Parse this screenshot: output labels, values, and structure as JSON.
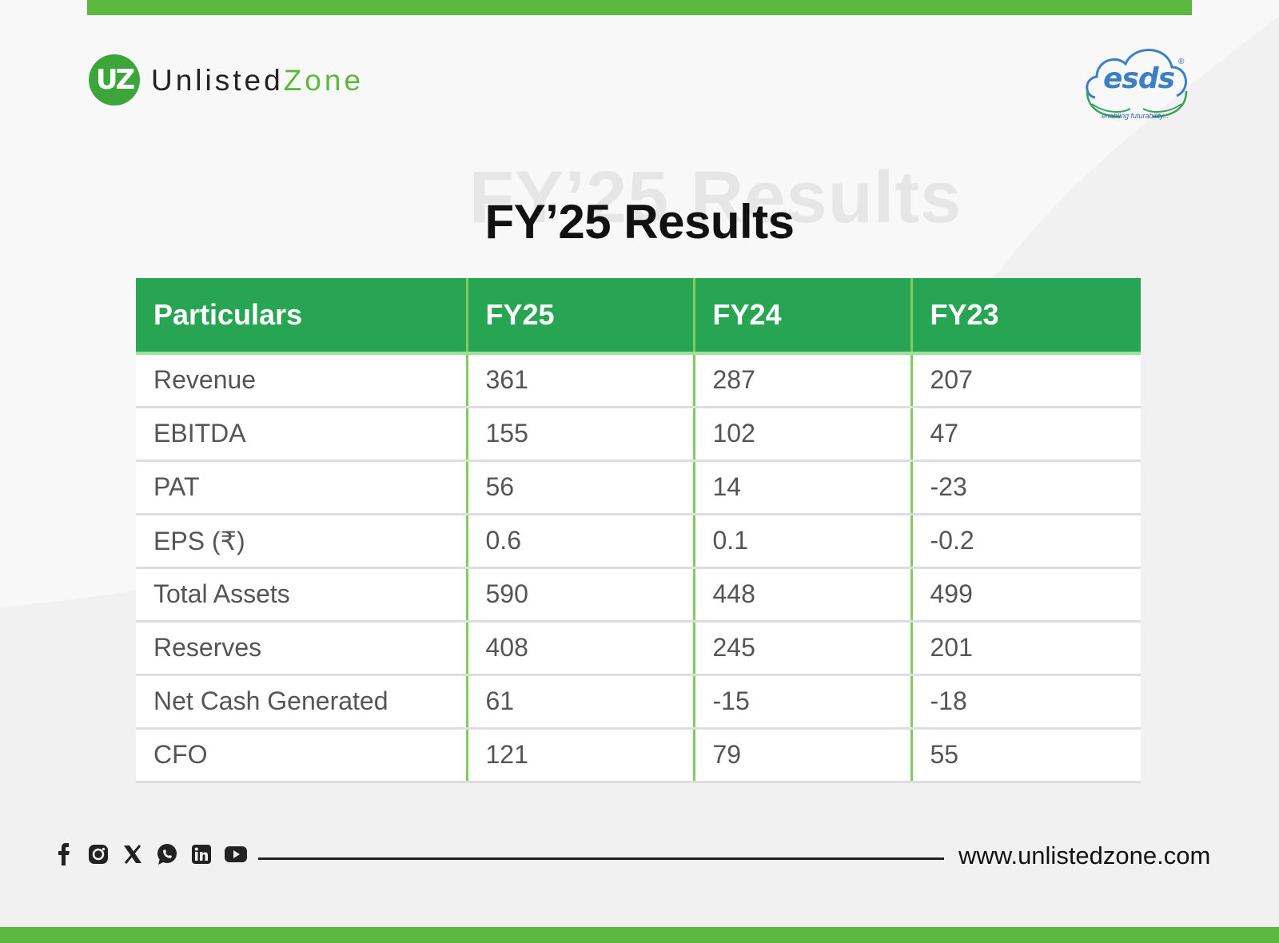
{
  "header": {
    "brand_primary": "Unlisted",
    "brand_secondary": "Zone",
    "brand_badge": "UZ",
    "partner_name": "esds",
    "partner_tagline": "enabling futurability...",
    "partner_reg_mark": "®"
  },
  "title": {
    "ghost": "FY’25 Results",
    "main": "FY’25 Results"
  },
  "table": {
    "headers": [
      "Particulars",
      "FY25",
      "FY24",
      "FY23"
    ],
    "rows": [
      [
        "Revenue",
        "361",
        "287",
        "207"
      ],
      [
        "EBITDA",
        "155",
        "102",
        "47"
      ],
      [
        "PAT",
        "56",
        "14",
        "-23"
      ],
      [
        "EPS (₹)",
        "0.6",
        "0.1",
        "-0.2"
      ],
      [
        "Total Assets",
        "590",
        "448",
        "499"
      ],
      [
        "Reserves",
        "408",
        "245",
        "201"
      ],
      [
        "Net Cash Generated",
        "61",
        "-15",
        "-18"
      ],
      [
        "CFO",
        "121",
        "79",
        "55"
      ]
    ]
  },
  "footer": {
    "social_icons": [
      "facebook-icon",
      "instagram-icon",
      "x-icon",
      "whatsapp-icon",
      "linkedin-icon",
      "youtube-icon"
    ],
    "website": "www.unlistedzone.com"
  },
  "colors": {
    "accent_green": "#5cb83e",
    "header_green": "#28a553",
    "divider_green": "#82cc5f",
    "esds_blue": "#3c7fc4"
  }
}
